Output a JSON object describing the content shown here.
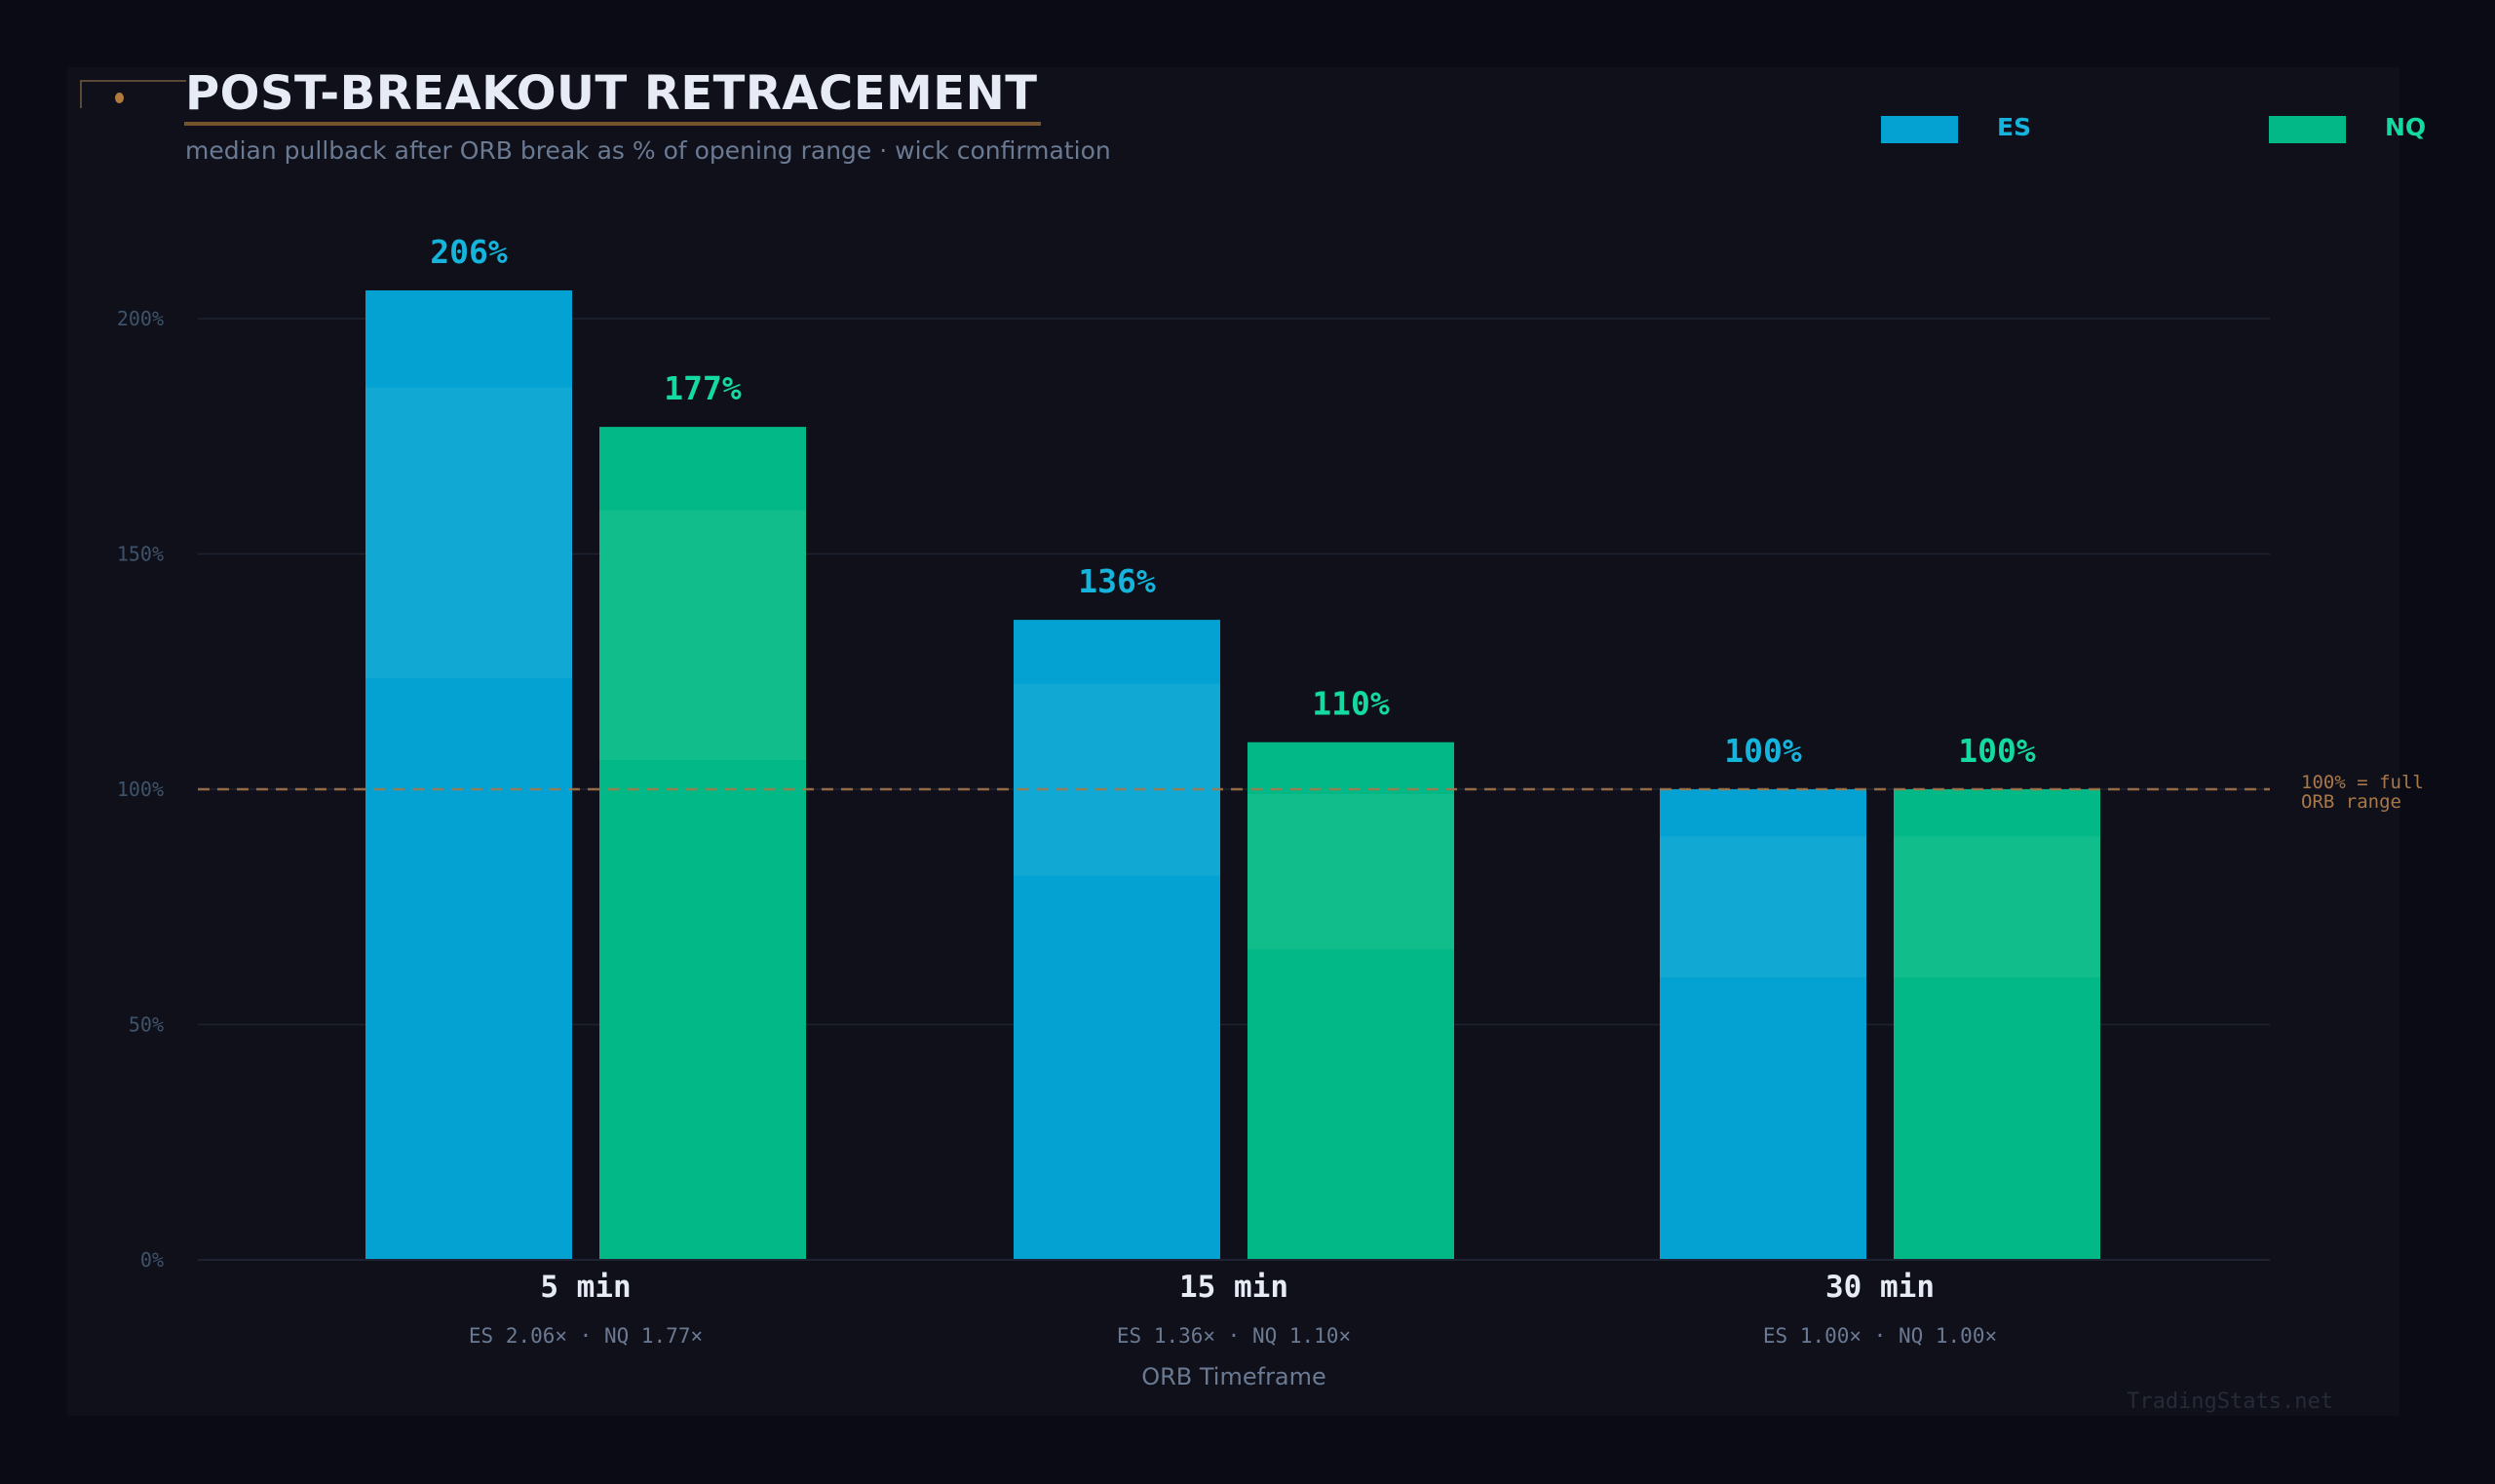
{
  "header": {
    "title": "POST-BREAKOUT RETRACEMENT",
    "subtitle": "median pullback after ORB break as % of opening range  ·  wick confirmation"
  },
  "watermark": "TradingStats.net",
  "colors": {
    "ES": "#03a2d2",
    "NQ": "#02b886",
    "ES_label": "#14b4dc",
    "NQ_label": "#14d9a0",
    "reference": "#a8784a",
    "grid": "#1f2230"
  },
  "chart_data": {
    "type": "bar",
    "title": "POST-BREAKOUT RETRACEMENT",
    "subtitle": "median pullback after ORB break as % of opening range  ·  wick confirmation",
    "xlabel": "ORB Timeframe",
    "ylabel": "",
    "ylim": [
      0,
      200
    ],
    "yticks": [
      0,
      50,
      100,
      150,
      200
    ],
    "ytick_labels": [
      "0%",
      "50%",
      "100%",
      "150%",
      "200%"
    ],
    "grid": true,
    "legend_placement": "top-right",
    "categories": [
      "5 min",
      "15 min",
      "30 min"
    ],
    "category_sublabels": [
      "ES 2.06×  ·  NQ 1.77×",
      "ES 1.36×  ·  NQ 1.10×",
      "ES 1.00×  ·  NQ 1.00×"
    ],
    "series": [
      {
        "name": "ES",
        "values": [
          206,
          136,
          100
        ],
        "labels": [
          "206%",
          "136%",
          "100%"
        ]
      },
      {
        "name": "NQ",
        "values": [
          177,
          110,
          100
        ],
        "labels": [
          "177%",
          "110%",
          "100%"
        ]
      }
    ],
    "reference_line": {
      "value": 100,
      "label": [
        "100% = full",
        "ORB range"
      ]
    }
  }
}
